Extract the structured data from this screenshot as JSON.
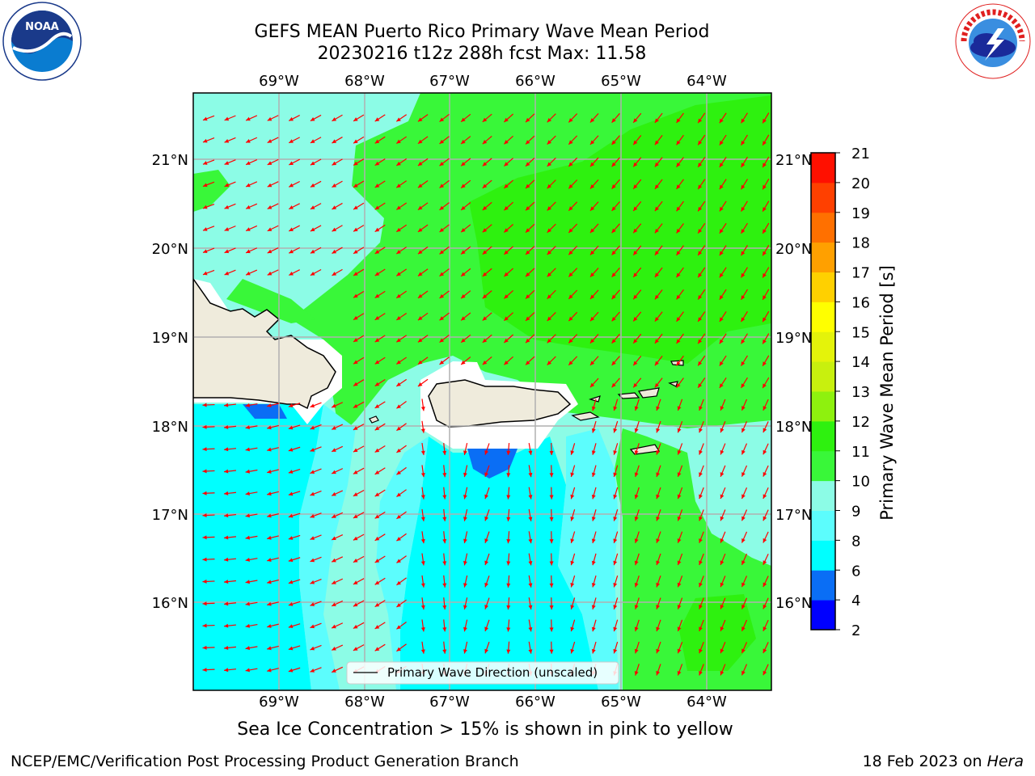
{
  "title_line1": "GEFS MEAN Puerto Rico Primary Wave Mean Period",
  "title_line2": "20230216 t12z 288h fcst   Max: 11.58",
  "logos": {
    "left": "noaa-logo",
    "right": "nws-logo",
    "left_text": "NOAA"
  },
  "map": {
    "lon_labels": [
      "69°W",
      "68°W",
      "67°W",
      "66°W",
      "65°W",
      "64°W"
    ],
    "lat_labels": [
      "21°N",
      "20°N",
      "19°N",
      "18°N",
      "17°N",
      "16°N"
    ],
    "legend_label": "Primary Wave Direction (unscaled)",
    "arrow_color": "#ff0000",
    "land_color": "#efebdc"
  },
  "colorbar": {
    "label": "Primary Wave Mean Period [s]",
    "ticks": [
      "2",
      "4",
      "6",
      "8",
      "9",
      "10",
      "11",
      "12",
      "13",
      "14",
      "15",
      "16",
      "17",
      "18",
      "19",
      "20",
      "21"
    ],
    "colors": [
      "#0000ff",
      "#0a6ef5",
      "#00ffff",
      "#5cfdfd",
      "#8cfce6",
      "#39f739",
      "#2ef10f",
      "#8ef10e",
      "#c8f00e",
      "#e4f30a",
      "#ffff00",
      "#ffd000",
      "#ffa000",
      "#ff7000",
      "#ff4000",
      "#ff1000"
    ]
  },
  "note": "Sea Ice Concentration > 15% is shown in pink to yellow",
  "footer_left": "NCEP/EMC/Verification Post Processing Product Generation Branch",
  "footer_right_prefix": "18 Feb 2023 on ",
  "footer_right_host": "Hera"
}
